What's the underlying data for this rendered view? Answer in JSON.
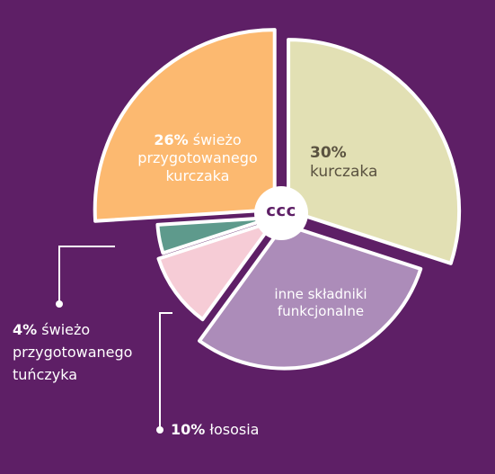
{
  "chart_data": {
    "type": "pie",
    "center_label": "CCC",
    "slices": [
      {
        "percent": "30%",
        "value": 30,
        "label": "kurczaka",
        "color": "#e2e0b4"
      },
      {
        "percent": "",
        "value": 30,
        "label": "inne składniki funkcjonalne",
        "color": "#ac8cb9"
      },
      {
        "percent": "10%",
        "value": 10,
        "label": "łososia",
        "color": "#f6ccd6"
      },
      {
        "percent": "4%",
        "value": 4,
        "label": "świeżo przygotowanego tuńczyka",
        "color": "#5e9a8c"
      },
      {
        "percent": "26%",
        "value": 26,
        "label": "świeżo przygotowanego kurczaka",
        "color": "#fcb970"
      }
    ]
  }
}
